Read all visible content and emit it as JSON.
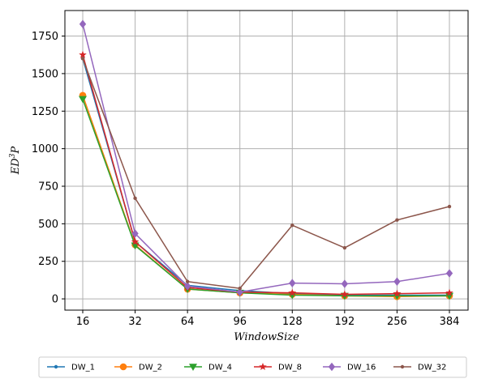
{
  "chart_data": {
    "type": "line",
    "title": "",
    "xlabel": "WindowSize",
    "ylabel": "ED^3P",
    "categories": [
      "16",
      "32",
      "64",
      "96",
      "128",
      "192",
      "256",
      "384"
    ],
    "yticks": [
      0,
      250,
      500,
      750,
      1000,
      1250,
      1500,
      1750
    ],
    "ylim": [
      -75,
      1920
    ],
    "grid": true,
    "legend_position": "bottom-center",
    "series": [
      {
        "name": "DW_1",
        "color": "#1f77b4",
        "marker": "dot",
        "values": [
          1600,
          380,
          90,
          55,
          35,
          25,
          25,
          25
        ]
      },
      {
        "name": "DW_2",
        "color": "#ff7f0e",
        "marker": "circle",
        "values": [
          1355,
          360,
          65,
          40,
          30,
          20,
          15,
          20
        ]
      },
      {
        "name": "DW_4",
        "color": "#2ca02c",
        "marker": "tri-down",
        "values": [
          1330,
          355,
          65,
          40,
          25,
          20,
          20,
          20
        ]
      },
      {
        "name": "DW_8",
        "color": "#d62728",
        "marker": "star",
        "values": [
          1625,
          380,
          75,
          45,
          40,
          30,
          35,
          40
        ]
      },
      {
        "name": "DW_16",
        "color": "#9467bd",
        "marker": "diamond",
        "values": [
          1830,
          435,
          85,
          45,
          105,
          100,
          115,
          170
        ]
      },
      {
        "name": "DW_32",
        "color": "#8c564b",
        "marker": "dot",
        "values": [
          1600,
          670,
          115,
          70,
          490,
          340,
          525,
          615
        ]
      }
    ]
  }
}
